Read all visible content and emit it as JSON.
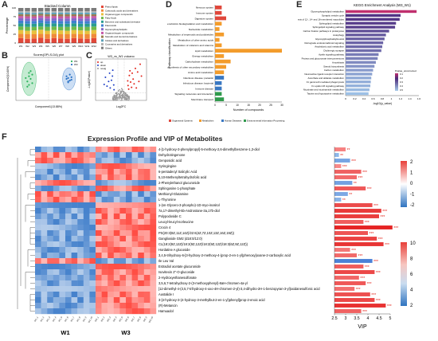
{
  "panels": {
    "A": {
      "letter": "A",
      "title": "Stacked Column",
      "ylabel": "Percentage",
      "x_ticks": [
        "W1",
        "W2",
        "W3",
        "W4",
        "W5",
        "W6",
        "W7",
        "W8",
        "W9",
        "W10",
        "W11",
        "W12"
      ],
      "y_ticks": [
        "0",
        "25",
        "50",
        "75",
        "100"
      ],
      "legend": [
        "Prenol lipids",
        "Carboxylic acids and derivatives",
        "Organooxygen compounds",
        "Fatty Acyls",
        "Benzene and substituted derivatives",
        "Flavonoids",
        "Glycerophospholipids",
        "Organonitrogen compounds",
        "Steroids and steroid derivatives",
        "Indoles and derivatives",
        "Coumarins and derivatives",
        "Others"
      ],
      "legend_colors": [
        "#e2483a",
        "#f08a3a",
        "#e9c13f",
        "#6fb94b",
        "#2a9d8f",
        "#3f7fcf",
        "#8367c7",
        "#c658a7",
        "#9a7b4f",
        "#5aa0b8",
        "#b3b3b3",
        "#7a7a7a"
      ]
    },
    "B": {
      "letter": "B",
      "title": "Scores(OPLS-DA) plot",
      "xlabel": "Component1(13.88%)",
      "ylabel": "Component2(10.88%)",
      "legend": [
        "W1",
        "W3"
      ],
      "colors": [
        "#2db35d",
        "#2d73c5"
      ]
    },
    "C": {
      "letter": "C",
      "title": "W3_vs_W1 volcano",
      "xlabel": "Log2FC",
      "ylabel": "-Log10(Pvalue)",
      "legend": [
        "up",
        "down",
        "nosig"
      ],
      "colors": [
        "#e2231a",
        "#1f3fc6",
        "#9a9a9a"
      ]
    },
    "D": {
      "letter": "D",
      "ylabel": "Pathway classification",
      "xlabel": "Number of compounds",
      "x_ticks": [
        "0",
        "5",
        "10",
        "15",
        "20",
        "25",
        "30"
      ],
      "legend": [
        "Organismal Systems",
        "Metabolism",
        "Human Diseases",
        "Environmental Information Processing"
      ],
      "legend_colors": [
        "#e0473b",
        "#f39c2c",
        "#3a78c2",
        "#2f9a4c"
      ]
    },
    "E": {
      "letter": "E",
      "title": "KEGG Enrichment Analysis (W3_W1)",
      "xlabel": "-log10(p_value)",
      "x_ticks": [
        "0",
        "0.2",
        "0.4",
        "0.6",
        "0.8",
        "1",
        "1.2",
        "1.4",
        "1.6"
      ],
      "colorbar_label": "Pvalue_uncorrected",
      "colorbar_ticks": [
        "0.1",
        "0.2",
        "0.3",
        "0.4",
        "0.5"
      ]
    },
    "F": {
      "letter": "F",
      "title": "Expression Profile and VIP of Metabolites",
      "group_labels": [
        "W1",
        "W3"
      ],
      "vip_label": "VIP",
      "vip_ticks": [
        "2.5",
        "3",
        "3.5",
        "4",
        "4.5",
        "5"
      ],
      "scale1_ticks": [
        "2",
        "1",
        "0",
        "-1",
        "-2"
      ],
      "scale2_ticks": [
        "10",
        "8",
        "6",
        "4",
        "2"
      ]
    }
  },
  "chart_data": [
    {
      "type": "bar",
      "panel": "A",
      "title": "Stacked Column",
      "ylabel": "Percentage",
      "categories": [
        "W1",
        "W2",
        "W3",
        "W4",
        "W5",
        "W6",
        "W7",
        "W8",
        "W9",
        "W10",
        "W11",
        "W12"
      ],
      "series": [
        {
          "name": "Prenol lipids",
          "values": [
            14,
            12,
            13,
            15,
            12,
            14,
            13,
            12,
            14,
            13,
            12,
            14
          ]
        },
        {
          "name": "Carboxylic acids and derivatives",
          "values": [
            12,
            13,
            12,
            11,
            13,
            12,
            12,
            13,
            12,
            12,
            13,
            12
          ]
        },
        {
          "name": "Organooxygen compounds",
          "values": [
            11,
            10,
            11,
            12,
            10,
            11,
            11,
            10,
            11,
            11,
            10,
            11
          ]
        },
        {
          "name": "Fatty Acyls",
          "values": [
            10,
            11,
            10,
            9,
            11,
            10,
            10,
            11,
            10,
            10,
            11,
            10
          ]
        },
        {
          "name": "Benzene and substituted derivatives",
          "values": [
            9,
            9,
            9,
            10,
            9,
            9,
            9,
            9,
            9,
            9,
            9,
            9
          ]
        },
        {
          "name": "Flavonoids",
          "values": [
            8,
            8,
            8,
            8,
            8,
            8,
            8,
            8,
            8,
            8,
            8,
            8
          ]
        },
        {
          "name": "Glycerophospholipids",
          "values": [
            7,
            7,
            7,
            7,
            7,
            7,
            7,
            7,
            7,
            7,
            7,
            7
          ]
        },
        {
          "name": "Organonitrogen compounds",
          "values": [
            6,
            6,
            6,
            6,
            6,
            6,
            6,
            6,
            6,
            6,
            6,
            6
          ]
        },
        {
          "name": "Steroids and steroid derivatives",
          "values": [
            5,
            6,
            5,
            5,
            6,
            5,
            6,
            6,
            5,
            6,
            6,
            5
          ]
        },
        {
          "name": "Indoles and derivatives",
          "values": [
            5,
            5,
            5,
            4,
            5,
            5,
            5,
            5,
            5,
            5,
            5,
            5
          ]
        },
        {
          "name": "Coumarins and derivatives",
          "values": [
            4,
            4,
            4,
            4,
            4,
            4,
            4,
            4,
            4,
            4,
            4,
            4
          ]
        },
        {
          "name": "Others",
          "values": [
            9,
            9,
            10,
            9,
            9,
            9,
            9,
            9,
            9,
            9,
            9,
            9
          ]
        }
      ],
      "ylim": [
        0,
        100
      ]
    },
    {
      "type": "scatter",
      "panel": "B",
      "title": "Scores(OPLS-DA) plot",
      "xlabel": "Component1(13.88%)",
      "ylabel": "Component2(10.88%)",
      "xlim": [
        -20,
        20
      ],
      "ylim": [
        -20,
        30
      ],
      "series": [
        {
          "name": "W1",
          "points": [
            [
              -12,
              8
            ],
            [
              -11,
              5
            ],
            [
              -13,
              2
            ],
            [
              -10,
              10
            ],
            [
              -12,
              -2
            ],
            [
              -11,
              14
            ],
            [
              -14,
              6
            ],
            [
              -10,
              0
            ],
            [
              -12,
              12
            ],
            [
              -13,
              -4
            ]
          ]
        },
        {
          "name": "W3",
          "points": [
            [
              12,
              6
            ],
            [
              13,
              3
            ],
            [
              11,
              8
            ],
            [
              14,
              4
            ],
            [
              12,
              1
            ],
            [
              13,
              10
            ],
            [
              11,
              5
            ],
            [
              14,
              7
            ],
            [
              12,
              2
            ]
          ]
        }
      ]
    },
    {
      "type": "scatter",
      "panel": "C",
      "title": "W3_vs_W1 volcano",
      "xlabel": "Log2FC",
      "ylabel": "-Log10(Pvalue)",
      "xlim": [
        -8,
        8
      ],
      "ylim": [
        0,
        7
      ],
      "series": [
        {
          "name": "up",
          "points": [
            [
              2.2,
              2.5
            ],
            [
              3,
              3.1
            ],
            [
              2.6,
              4.2
            ],
            [
              3.8,
              3.6
            ],
            [
              4.5,
              5.4
            ],
            [
              5.2,
              4.8
            ],
            [
              2.4,
              1.9
            ],
            [
              3.3,
              2.2
            ],
            [
              4.1,
              2.8
            ],
            [
              6,
              6.1
            ],
            [
              2.8,
              5
            ],
            [
              5.6,
              3.2
            ],
            [
              3.5,
              4.6
            ],
            [
              2.1,
              3.3
            ],
            [
              4.8,
              2.1
            ],
            [
              6.4,
              4.1
            ]
          ]
        },
        {
          "name": "down",
          "points": [
            [
              -2.3,
              2.6
            ],
            [
              -3,
              3.4
            ],
            [
              -2.7,
              4.1
            ],
            [
              -3.9,
              3.2
            ],
            [
              -4.4,
              2.4
            ],
            [
              -2.2,
              1.8
            ],
            [
              -3.4,
              2.1
            ],
            [
              -4.9,
              3.9
            ],
            [
              -2.6,
              5.1
            ],
            [
              -3.6,
              4.6
            ],
            [
              -5.3,
              2.7
            ]
          ]
        },
        {
          "name": "nosig",
          "points": [
            [
              -1,
              0.5
            ],
            [
              -0.5,
              1
            ],
            [
              0,
              1.4
            ],
            [
              0.5,
              0.8
            ],
            [
              1,
              0.6
            ],
            [
              -1.5,
              1.2
            ],
            [
              1.4,
              1.1
            ],
            [
              0.2,
              0.3
            ],
            [
              -0.8,
              1.6
            ],
            [
              0.8,
              1.5
            ],
            [
              -0.3,
              0.7
            ],
            [
              1.2,
              0.4
            ]
          ]
        }
      ]
    },
    {
      "type": "bar",
      "panel": "D",
      "orientation": "horizontal",
      "xlabel": "Number of compounds",
      "ylabel": "Pathway classification",
      "categories": [
        "Nervous system",
        "Immune system",
        "Digestive system",
        "Xenobiotics biodegradation and metabolism",
        "Nucleotide metabolism",
        "Metabolism of terpenoids and polyketides",
        "Metabolism of other amino acids",
        "Metabolism of cofactors and vitamins",
        "Lipid metabolism",
        "Energy metabolism",
        "Carbohydrate metabolism",
        "Biosynthesis of other secondary metabolites",
        "Amino acid metabolism",
        "Infectious disease: parasitic",
        "Infectious disease: bacterial",
        "Immune disease",
        "Signaling molecules and interaction",
        "Membrane transport"
      ],
      "values": [
        3,
        3,
        5,
        3,
        2,
        4,
        2,
        3,
        30,
        4,
        7,
        5,
        4,
        4,
        3,
        3,
        3,
        4
      ],
      "groups": [
        "Organismal Systems",
        "Organismal Systems",
        "Organismal Systems",
        "Metabolism",
        "Metabolism",
        "Metabolism",
        "Metabolism",
        "Metabolism",
        "Metabolism",
        "Metabolism",
        "Metabolism",
        "Metabolism",
        "Metabolism",
        "Human Diseases",
        "Human Diseases",
        "Human Diseases",
        "Environmental Information Processing",
        "Environmental Information Processing"
      ],
      "xlim": [
        0,
        30
      ]
    },
    {
      "type": "bar",
      "panel": "E",
      "orientation": "horizontal",
      "title": "KEGG Enrichment Analysis (W3_W1)",
      "xlabel": "-log10(p_value)",
      "categories": [
        "Glycerophospholipid metabolism",
        "Synaptic vesicle cycle",
        "Biosynthesis of 12-, 14- and 16-membered macrolides",
        "Sphingolipid metabolism",
        "Sphingolipid signaling pathway",
        "Carbon fixation pathways in prokaryotes",
        "Autophagy",
        "Glycosylphosphatidylinositol",
        "Retrograde endocannabinoid signaling",
        "Arachidonic acid metabolism",
        "Cholinergic synapse",
        "Apelin signaling pathway",
        "Proteus and glucuronate interconversions",
        "Amoebiasis",
        "Steroid biosynthesis",
        "Carbon metabolism",
        "Neuroactive ligand-receptor interaction",
        "Ascorbate and aldarate metabolism",
        "Fc gamma R-mediated phagocytosis",
        "Fc epsilon RI signaling pathway",
        "Nicotinate and nicotinamide metabolism",
        "Taurine and hypotaurine metabolism"
      ],
      "values": [
        1.55,
        1.2,
        1.18,
        1.1,
        1.08,
        0.95,
        0.88,
        0.85,
        0.82,
        0.8,
        0.78,
        0.72,
        0.7,
        0.66,
        0.63,
        0.6,
        0.58,
        0.56,
        0.55,
        0.54,
        0.52,
        0.5
      ],
      "colorbar": {
        "label": "Pvalue_uncorrected",
        "range": [
          0.1,
          0.5
        ]
      },
      "xlim": [
        0,
        1.6
      ]
    },
    {
      "type": "heatmap",
      "panel": "F",
      "title": "Expression Profile and VIP of Metabolites",
      "groups": [
        "W1",
        "W3"
      ],
      "samples_per_group": 10,
      "rows": [
        "4-[1-hydroxy-3-phenylpropyl]-5-methoxy-2,6-dimethylbenzene-1,3-diol",
        "Dehydrotingenone",
        "Genposidic acid",
        "Syringingine",
        "6-pentadecyl Salicylic Acid",
        "5,10-Methenyltetrahydrofolic acid",
        "2-Phenylethanol glucuronide",
        "Sphingosine 1-phosphate",
        "Methionyl-Glutamine",
        "L-Thyronine",
        "1-(sn-Glycero-3-phospho)-1D-myo-inositol",
        "7a,17-dimethyl-5b-Androstane-3a,17b-diol",
        "Polypodoside C",
        "Leucyl-leucyl-norleucine",
        "Crocin 4",
        "PS(20:3(8Z,11Z,14Z)/22:6(4Z,7Z,10Z,13Z,16Z,19Z))",
        "Ganglioside GM2 (d18:0/12:0)",
        "CL(18:2(9Z,12Z)/18:2(9Z,12Z)/18:2(9Z,12Z)/18:3(6Z,9Z,12Z))",
        "Hordatine A glucoside",
        "3,4,5-trihydroxy-6-[3-hydroxy-2-methoxy-4-(prop-2-en-1-yl)phenoxy]oxane-2-carboxylic acid",
        "Ile Leu Val",
        "Estradiol acetate glucuronide",
        "Isovitexin 2''-O-glucoside",
        "2-Hydroxyethanesulfonate",
        "3,5,6,7-tetrahydroxy-2-(3-methoxyphenyl)-8aH-chromen-4a-yl",
        "[12-dimethyl-4-(3,5,7-trihydroxy-4-oxo-4H-chromen-2-yl)-3,4-dihydro-2H-1-benzopyran-3-yl]oxidanesulfonic acid",
        "Austalide I",
        "3-[4-hydroxy-3-(4-hydroxy-3-methylbut-2-en-1-yl)phenyl]prop-2-enoic acid",
        "(R)-Metancin",
        "Hamuadol"
      ],
      "vip": [
        3.0,
        2.7,
        3.2,
        2.8,
        3.7,
        3.5,
        3.3,
        3.9,
        3.1,
        2.8,
        4.2,
        4.6,
        4.5,
        3.8,
        5.1,
        4.0,
        4.4,
        4.7,
        3.2,
        3.5,
        4.2,
        3.8,
        4.3,
        3.6,
        3.9,
        3.4,
        4.1,
        4.3,
        4.8,
        3.7
      ],
      "log2fc_sign": [
        1,
        -1,
        -1,
        1,
        1,
        1,
        -1,
        1,
        -1,
        -1,
        1,
        1,
        1,
        1,
        1,
        1,
        1,
        1,
        1,
        1,
        -1,
        1,
        1,
        1,
        1,
        1,
        1,
        1,
        1,
        1
      ],
      "significance": [
        "**",
        "**",
        "***",
        "***",
        "***",
        "***",
        "**",
        "***",
        "**",
        "**",
        "***",
        "***",
        "***",
        "***",
        "***",
        "***",
        "***",
        "***",
        "***",
        "***",
        "***",
        "***",
        "***",
        "***",
        "***",
        "***",
        "***",
        "***",
        "***",
        "***"
      ],
      "vip_range": [
        2.5,
        5
      ]
    }
  ]
}
